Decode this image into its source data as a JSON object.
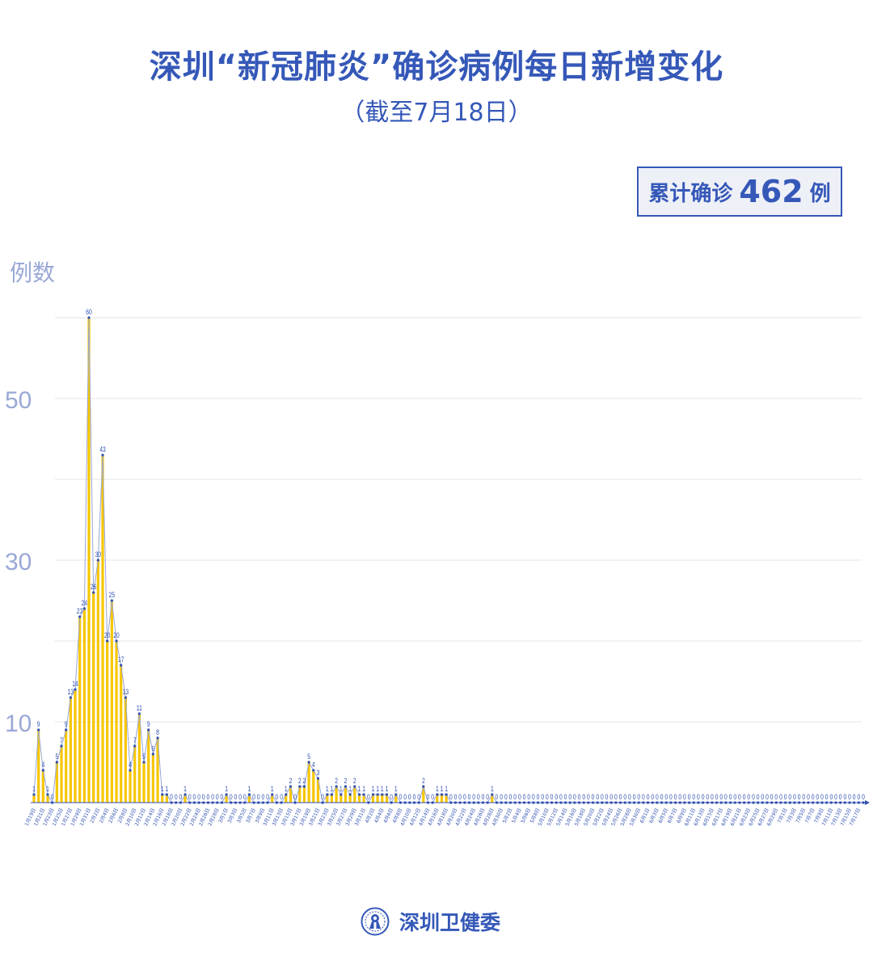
{
  "header": {
    "title": "深圳“新冠肺炎”确诊病例每日新增变化",
    "subtitle": "（截至7月18日）"
  },
  "total": {
    "label": "累计确诊",
    "value": "462",
    "unit": "例"
  },
  "footer": {
    "org": "深圳卫健委",
    "logo_icon": "shenzhen-health-commission-emblem"
  },
  "colors": {
    "title": "#3558b8",
    "bar": "#f7c600",
    "line": "#98a6d4",
    "point": "#2f4fb0",
    "axis_label": "#9aa8d6"
  },
  "chart_data": {
    "type": "bar",
    "overlay": "line",
    "ylabel": "例数",
    "ylim": [
      0,
      60
    ],
    "yticks_labeled": [
      10,
      30,
      50
    ],
    "grid": true,
    "gridlines": [
      0,
      10,
      20,
      30,
      40,
      50,
      60
    ],
    "first_date": "1月19日",
    "last_date": "7月18日",
    "tick_labels": [
      "1月19日",
      "1月21日",
      "1月23日",
      "1月25日",
      "1月27日",
      "1月29日",
      "1月31日",
      "2月2日",
      "2月4日",
      "2月6日",
      "2月8日",
      "2月10日",
      "2月12日",
      "2月14日",
      "2月16日",
      "2月18日",
      "2月20日",
      "2月22日",
      "2月24日",
      "2月26日",
      "2月28日",
      "3月1日",
      "3月3日",
      "3月5日",
      "3月7日",
      "3月9日",
      "3月11日",
      "3月13日",
      "3月15日",
      "3月17日",
      "3月19日",
      "3月21日",
      "3月23日",
      "3月25日",
      "3月27日",
      "3月29日",
      "3月31日",
      "4月2日",
      "4月4日",
      "4月6日",
      "4月8日",
      "4月10日",
      "4月12日",
      "4月14日",
      "4月16日",
      "4月18日",
      "4月20日",
      "4月22日",
      "4月24日",
      "4月26日",
      "4月28日",
      "4月30日",
      "5月2日",
      "5月4日",
      "5月6日",
      "5月8日",
      "5月10日",
      "5月12日",
      "5月14日",
      "5月16日",
      "5月18日",
      "5月20日",
      "5月22日",
      "5月24日",
      "5月26日",
      "5月28日",
      "5月30日",
      "6月1日",
      "6月3日",
      "6月5日",
      "6月7日",
      "6月9日",
      "6月11日",
      "6月13日",
      "6月15日",
      "6月17日",
      "6月19日",
      "6月21日",
      "6月23日",
      "6月25日",
      "6月27日",
      "6月29日",
      "7月1日",
      "7月3日",
      "7月5日",
      "7月7日",
      "7月9日",
      "7月11日",
      "7月13日",
      "7月15日",
      "7月17日"
    ],
    "values": [
      1,
      9,
      4,
      1,
      0,
      5,
      7,
      9,
      13,
      14,
      23,
      24,
      60,
      26,
      30,
      43,
      20,
      25,
      20,
      17,
      13,
      4,
      7,
      11,
      5,
      9,
      6,
      8,
      1,
      1,
      0,
      0,
      0,
      1,
      0,
      0,
      0,
      0,
      0,
      0,
      0,
      0,
      1,
      0,
      0,
      0,
      0,
      1,
      0,
      0,
      0,
      0,
      1,
      0,
      0,
      1,
      2,
      0,
      2,
      2,
      5,
      4,
      3,
      0,
      1,
      1,
      2,
      1,
      2,
      1,
      2,
      1,
      1,
      0,
      1,
      1,
      1,
      1,
      0,
      1,
      0,
      0,
      0,
      0,
      0,
      2,
      0,
      0,
      1,
      1,
      1,
      0,
      0,
      0,
      0,
      0,
      0,
      0,
      0,
      0,
      1,
      0,
      0,
      0,
      0,
      0,
      0,
      0,
      0,
      0,
      0,
      0,
      0,
      0,
      0,
      0,
      0,
      0,
      0,
      0,
      0,
      0,
      0,
      0,
      0,
      0,
      0,
      0,
      0,
      0,
      0,
      0,
      0,
      0,
      0,
      0,
      0,
      0,
      0,
      0,
      0,
      0,
      0,
      0,
      0,
      0,
      0,
      0,
      0,
      0,
      0,
      0,
      0,
      0,
      0,
      0,
      0,
      0,
      0,
      0,
      0,
      0,
      0,
      0,
      0,
      0,
      0,
      0,
      0,
      0,
      0,
      0,
      0,
      0,
      0,
      0,
      0,
      0,
      0,
      0,
      0,
      0
    ]
  }
}
